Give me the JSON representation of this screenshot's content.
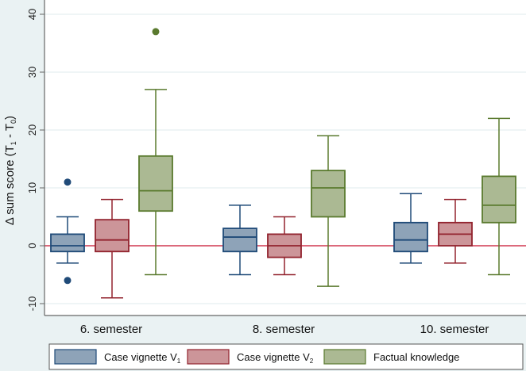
{
  "chart_data": {
    "type": "box",
    "title": "",
    "ylabel": "Δ sum score (T1 - T0)",
    "ylabel_parts": {
      "prefix": "Δ sum score (T",
      "sub1": "1",
      "mid": " - T",
      "sub2": "0",
      "suffix": ")"
    },
    "xlabel": "",
    "ylim": [
      -12,
      42
    ],
    "yticks": [
      -10,
      0,
      10,
      20,
      30,
      40
    ],
    "ytick_labels": [
      "-10",
      "0",
      "10",
      "20",
      "30",
      "40"
    ],
    "grid": true,
    "reference_line": 0,
    "categories": [
      "6. semester",
      "8. semester",
      "10. semester"
    ],
    "legend_position": "bottom",
    "series": [
      {
        "name": "Case vignette V1",
        "label_main": "Case vignette V",
        "label_sub": "1",
        "fill": "#8ea3b8",
        "stroke": "#1f4a78",
        "boxes": [
          {
            "min": -3,
            "q1": -1,
            "median": 0,
            "q3": 2,
            "max": 5,
            "outliers": [
              11,
              -6
            ]
          },
          {
            "min": -5,
            "q1": -1,
            "median": 1.5,
            "q3": 3,
            "max": 7,
            "outliers": []
          },
          {
            "min": -3,
            "q1": -1,
            "median": 1,
            "q3": 4,
            "max": 9,
            "outliers": []
          }
        ]
      },
      {
        "name": "Case vignette V2",
        "label_main": "Case vignette V",
        "label_sub": "2",
        "fill": "#cc9599",
        "stroke": "#92232e",
        "boxes": [
          {
            "min": -9,
            "q1": -1,
            "median": 1,
            "q3": 4.5,
            "max": 8,
            "outliers": []
          },
          {
            "min": -5,
            "q1": -2,
            "median": 0,
            "q3": 2,
            "max": 5,
            "outliers": []
          },
          {
            "min": -3,
            "q1": 0,
            "median": 2,
            "q3": 4,
            "max": 8,
            "outliers": []
          }
        ]
      },
      {
        "name": "Factual knowledge",
        "label_main": "Factual knowledge",
        "label_sub": "",
        "fill": "#abb993",
        "stroke": "#5a7a2e",
        "boxes": [
          {
            "min": -5,
            "q1": 6,
            "median": 9.5,
            "q3": 15.5,
            "max": 27,
            "outliers": [
              37
            ]
          },
          {
            "min": -7,
            "q1": 5,
            "median": 10,
            "q3": 13,
            "max": 19,
            "outliers": []
          },
          {
            "min": -5,
            "q1": 4,
            "median": 7,
            "q3": 12,
            "max": 22,
            "outliers": []
          }
        ]
      }
    ]
  }
}
